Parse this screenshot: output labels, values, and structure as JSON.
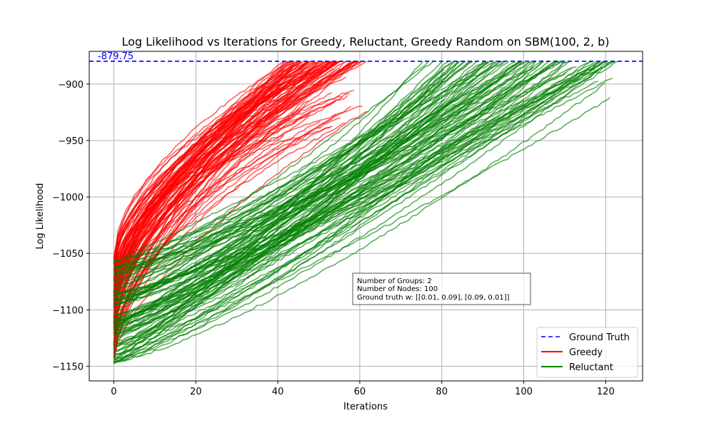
{
  "chart_data": {
    "type": "line",
    "title": "Log Likelihood vs Iterations for Greedy, Reluctant, Greedy Random on SBM(100, 2, b)",
    "xlabel": "Iterations",
    "ylabel": "Log Likelihood",
    "xlim": [
      -6,
      129
    ],
    "ylim": [
      -1163,
      -871
    ],
    "xticks": [
      0,
      20,
      40,
      60,
      80,
      100,
      120
    ],
    "yticks": [
      -1150,
      -1100,
      -1050,
      -1000,
      -950,
      -900
    ],
    "grid": true,
    "legend_position": "bottom-right",
    "reference_line": {
      "name": "Ground Truth",
      "y": -879.75,
      "label": "-879.75",
      "color": "#0000ff",
      "style": "dashed"
    },
    "series": [
      {
        "name": "Greedy",
        "color": "#ff0000",
        "count_approx": 100,
        "x_end_range": [
          40,
          62
        ],
        "y_start_range": [
          -1148,
          -1052
        ],
        "y_end_range": [
          -946,
          -879.75
        ]
      },
      {
        "name": "Reluctant",
        "color": "#008000",
        "count_approx": 100,
        "x_end_range": [
          75,
          123
        ],
        "y_start_range": [
          -1148,
          -1055
        ],
        "y_end_range": [
          -915,
          -879.75
        ]
      }
    ],
    "annotation_box": [
      "Number of Groups: 2",
      "Number of Nodes: 100",
      "Ground truth w: [[0.01, 0.09], [0.09, 0.01]]"
    ]
  }
}
